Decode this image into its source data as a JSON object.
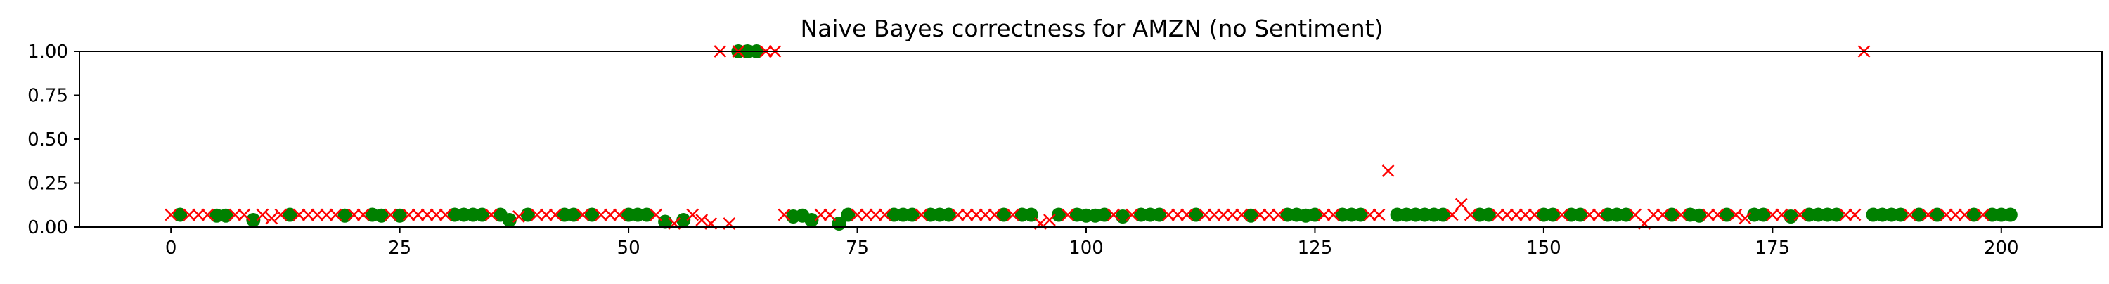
{
  "chart_data": {
    "type": "scatter",
    "title": "Naive Bayes correctness for AMZN (no Sentiment)",
    "xlabel": "",
    "ylabel": "",
    "xlim": [
      -10,
      211
    ],
    "ylim": [
      0,
      1
    ],
    "xticks": [
      0,
      25,
      50,
      75,
      100,
      125,
      150,
      175,
      200
    ],
    "yticks": [
      0.0,
      0.25,
      0.5,
      0.75,
      1.0
    ],
    "xtick_labels": [
      "0",
      "25",
      "50",
      "75",
      "100",
      "125",
      "150",
      "175",
      "200"
    ],
    "ytick_labels": [
      "0.00",
      "0.25",
      "0.50",
      "0.75",
      "1.00"
    ],
    "grid": false,
    "legend": false,
    "series": [
      {
        "marker": "circle",
        "color": "#008000",
        "points": [
          [
            1,
            0.07
          ],
          [
            5,
            0.065
          ],
          [
            6,
            0.065
          ],
          [
            9,
            0.04
          ],
          [
            13,
            0.07
          ],
          [
            19,
            0.065
          ],
          [
            22,
            0.07
          ],
          [
            23,
            0.065
          ],
          [
            25,
            0.065
          ],
          [
            31,
            0.07
          ],
          [
            32,
            0.07
          ],
          [
            33,
            0.07
          ],
          [
            34,
            0.07
          ],
          [
            36,
            0.07
          ],
          [
            37,
            0.04
          ],
          [
            39,
            0.07
          ],
          [
            43,
            0.07
          ],
          [
            44,
            0.07
          ],
          [
            46,
            0.07
          ],
          [
            50,
            0.07
          ],
          [
            51,
            0.07
          ],
          [
            52,
            0.07
          ],
          [
            54,
            0.03
          ],
          [
            56,
            0.04
          ],
          [
            62,
            1.0
          ],
          [
            63,
            1.0
          ],
          [
            64,
            1.0
          ],
          [
            68,
            0.06
          ],
          [
            69,
            0.065
          ],
          [
            70,
            0.04
          ],
          [
            73,
            0.02
          ],
          [
            74,
            0.07
          ],
          [
            79,
            0.07
          ],
          [
            80,
            0.07
          ],
          [
            81,
            0.07
          ],
          [
            83,
            0.07
          ],
          [
            84,
            0.07
          ],
          [
            85,
            0.07
          ],
          [
            91,
            0.07
          ],
          [
            93,
            0.07
          ],
          [
            94,
            0.07
          ],
          [
            97,
            0.07
          ],
          [
            99,
            0.07
          ],
          [
            100,
            0.065
          ],
          [
            101,
            0.065
          ],
          [
            102,
            0.07
          ],
          [
            104,
            0.06
          ],
          [
            106,
            0.07
          ],
          [
            107,
            0.07
          ],
          [
            108,
            0.07
          ],
          [
            112,
            0.07
          ],
          [
            118,
            0.065
          ],
          [
            122,
            0.07
          ],
          [
            123,
            0.07
          ],
          [
            124,
            0.065
          ],
          [
            125,
            0.07
          ],
          [
            128,
            0.07
          ],
          [
            129,
            0.07
          ],
          [
            130,
            0.07
          ],
          [
            134,
            0.07
          ],
          [
            135,
            0.07
          ],
          [
            136,
            0.07
          ],
          [
            137,
            0.07
          ],
          [
            138,
            0.07
          ],
          [
            139,
            0.07
          ],
          [
            143,
            0.07
          ],
          [
            144,
            0.07
          ],
          [
            150,
            0.07
          ],
          [
            151,
            0.07
          ],
          [
            153,
            0.07
          ],
          [
            154,
            0.07
          ],
          [
            157,
            0.07
          ],
          [
            158,
            0.07
          ],
          [
            159,
            0.07
          ],
          [
            164,
            0.07
          ],
          [
            166,
            0.07
          ],
          [
            167,
            0.065
          ],
          [
            170,
            0.07
          ],
          [
            173,
            0.07
          ],
          [
            174,
            0.07
          ],
          [
            177,
            0.06
          ],
          [
            179,
            0.07
          ],
          [
            180,
            0.07
          ],
          [
            181,
            0.07
          ],
          [
            182,
            0.07
          ],
          [
            186,
            0.07
          ],
          [
            187,
            0.07
          ],
          [
            188,
            0.07
          ],
          [
            189,
            0.07
          ],
          [
            191,
            0.07
          ],
          [
            193,
            0.07
          ],
          [
            197,
            0.07
          ],
          [
            199,
            0.07
          ],
          [
            200,
            0.07
          ],
          [
            201,
            0.07
          ]
        ]
      },
      {
        "marker": "x",
        "color": "#ff0000",
        "points": [
          [
            0,
            0.07
          ],
          [
            2,
            0.07
          ],
          [
            3,
            0.07
          ],
          [
            4,
            0.07
          ],
          [
            7,
            0.07
          ],
          [
            8,
            0.07
          ],
          [
            10,
            0.07
          ],
          [
            11,
            0.05
          ],
          [
            12,
            0.07
          ],
          [
            14,
            0.07
          ],
          [
            15,
            0.07
          ],
          [
            16,
            0.07
          ],
          [
            17,
            0.07
          ],
          [
            18,
            0.07
          ],
          [
            20,
            0.07
          ],
          [
            21,
            0.07
          ],
          [
            24,
            0.07
          ],
          [
            26,
            0.07
          ],
          [
            27,
            0.07
          ],
          [
            28,
            0.07
          ],
          [
            29,
            0.07
          ],
          [
            30,
            0.07
          ],
          [
            35,
            0.07
          ],
          [
            38,
            0.06
          ],
          [
            40,
            0.07
          ],
          [
            41,
            0.07
          ],
          [
            42,
            0.07
          ],
          [
            45,
            0.07
          ],
          [
            47,
            0.07
          ],
          [
            48,
            0.07
          ],
          [
            49,
            0.07
          ],
          [
            53,
            0.07
          ],
          [
            55,
            0.02
          ],
          [
            57,
            0.07
          ],
          [
            58,
            0.04
          ],
          [
            59,
            0.02
          ],
          [
            60,
            1.0
          ],
          [
            61,
            0.02
          ],
          [
            62,
            1.0
          ],
          [
            65,
            1.0
          ],
          [
            66,
            1.0
          ],
          [
            67,
            0.07
          ],
          [
            71,
            0.07
          ],
          [
            72,
            0.07
          ],
          [
            75,
            0.07
          ],
          [
            76,
            0.07
          ],
          [
            77,
            0.07
          ],
          [
            78,
            0.07
          ],
          [
            82,
            0.07
          ],
          [
            86,
            0.07
          ],
          [
            87,
            0.07
          ],
          [
            88,
            0.07
          ],
          [
            89,
            0.07
          ],
          [
            90,
            0.07
          ],
          [
            92,
            0.07
          ],
          [
            95,
            0.02
          ],
          [
            96,
            0.04
          ],
          [
            98,
            0.07
          ],
          [
            103,
            0.07
          ],
          [
            105,
            0.07
          ],
          [
            109,
            0.07
          ],
          [
            110,
            0.07
          ],
          [
            111,
            0.07
          ],
          [
            113,
            0.07
          ],
          [
            114,
            0.07
          ],
          [
            115,
            0.07
          ],
          [
            116,
            0.07
          ],
          [
            117,
            0.07
          ],
          [
            119,
            0.07
          ],
          [
            120,
            0.07
          ],
          [
            121,
            0.07
          ],
          [
            126,
            0.07
          ],
          [
            127,
            0.07
          ],
          [
            131,
            0.07
          ],
          [
            132,
            0.07
          ],
          [
            133,
            0.32
          ],
          [
            140,
            0.07
          ],
          [
            141,
            0.13
          ],
          [
            142,
            0.07
          ],
          [
            145,
            0.07
          ],
          [
            146,
            0.07
          ],
          [
            147,
            0.07
          ],
          [
            148,
            0.07
          ],
          [
            149,
            0.07
          ],
          [
            152,
            0.07
          ],
          [
            155,
            0.07
          ],
          [
            156,
            0.07
          ],
          [
            160,
            0.07
          ],
          [
            161,
            0.02
          ],
          [
            162,
            0.07
          ],
          [
            163,
            0.07
          ],
          [
            165,
            0.07
          ],
          [
            168,
            0.07
          ],
          [
            169,
            0.07
          ],
          [
            171,
            0.07
          ],
          [
            172,
            0.05
          ],
          [
            175,
            0.07
          ],
          [
            176,
            0.07
          ],
          [
            178,
            0.07
          ],
          [
            183,
            0.07
          ],
          [
            184,
            0.07
          ],
          [
            185,
            1.0
          ],
          [
            190,
            0.07
          ],
          [
            192,
            0.07
          ],
          [
            194,
            0.07
          ],
          [
            195,
            0.07
          ],
          [
            196,
            0.07
          ],
          [
            198,
            0.07
          ]
        ]
      }
    ]
  }
}
